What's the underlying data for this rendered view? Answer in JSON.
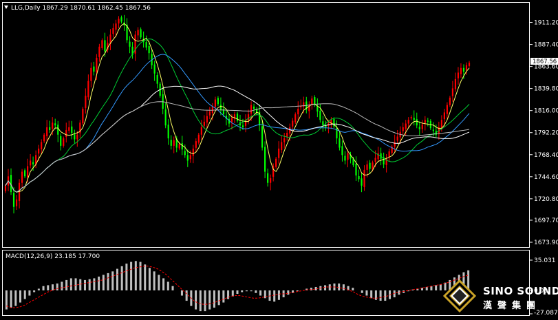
{
  "colors": {
    "background": "#000000",
    "bull_candle": "#00ff00",
    "bear_candle": "#ff0000",
    "grid_border": "#ffffff",
    "macd_hist": "#c0c0c0",
    "macd_signal": "#ff0000",
    "ma_yellow": "#ffff66",
    "ma_green": "#00cc33",
    "ma_blue": "#3399ff",
    "ma_white": "#ffffff",
    "ma_gray": "#bbbbbb"
  },
  "main_panel": {
    "triangle_icon": "down-triangle-icon",
    "header": "LLG,Daily  1867.29 1870.61 1862.45 1867.56",
    "current_price": "1867.56",
    "price_axis": [
      "1911.20",
      "1887.40",
      "1863.60",
      "1839.80",
      "1816.00",
      "1792.20",
      "1768.40",
      "1744.60",
      "1720.80",
      "1697.70",
      "1673.90"
    ]
  },
  "macd_panel": {
    "header": "MACD(12,26,9) 23.185 17.700",
    "axis": [
      "35.031",
      "0.00",
      "-27.087"
    ]
  },
  "watermark": {
    "logo_icon": "sino-sound-diamond-logo-icon",
    "brand_en": "SINO SOUND",
    "brand_cn": "漢聲集團"
  },
  "chart_data": [
    {
      "type": "candlestick",
      "title": "LLG,Daily",
      "symbol": "LLG",
      "timeframe": "Daily",
      "last_bar": {
        "open": 1867.29,
        "high": 1870.61,
        "low": 1862.45,
        "close": 1867.56
      },
      "ylim": [
        1673.9,
        1922.0
      ],
      "y_ticks": [
        1911.2,
        1887.4,
        1863.6,
        1839.8,
        1816.0,
        1792.2,
        1768.4,
        1744.6,
        1720.8,
        1697.7,
        1673.9
      ],
      "closes": [
        1735,
        1745,
        1728,
        1712,
        1720,
        1738,
        1750,
        1745,
        1756,
        1762,
        1758,
        1768,
        1775,
        1782,
        1790,
        1798,
        1795,
        1803,
        1800,
        1790,
        1778,
        1786,
        1795,
        1798,
        1792,
        1785,
        1790,
        1803,
        1818,
        1832,
        1848,
        1862,
        1858,
        1873,
        1885,
        1892,
        1880,
        1889,
        1898,
        1905,
        1910,
        1915,
        1912,
        1908,
        1892,
        1885,
        1876,
        1898,
        1903,
        1895,
        1890,
        1884,
        1878,
        1865,
        1856,
        1845,
        1832,
        1818,
        1800,
        1786,
        1778,
        1784,
        1776,
        1780,
        1774,
        1768,
        1762,
        1768,
        1775,
        1783,
        1790,
        1798,
        1804,
        1810,
        1815,
        1820,
        1828,
        1823,
        1817,
        1812,
        1807,
        1802,
        1808,
        1812,
        1805,
        1800,
        1798,
        1806,
        1812,
        1822,
        1818,
        1813,
        1800,
        1776,
        1750,
        1738,
        1743,
        1756,
        1764,
        1775,
        1782,
        1786,
        1792,
        1798,
        1805,
        1812,
        1818,
        1821,
        1825,
        1817,
        1822,
        1829,
        1822,
        1815,
        1806,
        1800,
        1798,
        1802,
        1806,
        1799,
        1786,
        1776,
        1768,
        1762,
        1770,
        1764,
        1757,
        1746,
        1742,
        1735,
        1752,
        1758,
        1753,
        1760,
        1765,
        1770,
        1764,
        1758,
        1765,
        1772,
        1777,
        1782,
        1788,
        1793,
        1798,
        1802,
        1806,
        1809,
        1806,
        1800,
        1796,
        1801,
        1806,
        1804,
        1797,
        1794,
        1790,
        1798,
        1806,
        1814,
        1822,
        1830,
        1840,
        1850,
        1857,
        1862,
        1858,
        1865,
        1867.56
      ]
    },
    {
      "type": "bar",
      "title": "MACD(12,26,9)",
      "macd": 23.185,
      "signal": 17.7,
      "ylim": [
        -27.087,
        35.031
      ],
      "y_ticks": [
        35.031,
        0.0,
        -27.087
      ],
      "signal_line": [
        -18,
        -20,
        -20,
        -19,
        -17,
        -14,
        -11,
        -8,
        -5,
        -2,
        0,
        2,
        3,
        4,
        5,
        6,
        7,
        8,
        9,
        10,
        11,
        12,
        14,
        16,
        18,
        20,
        22,
        24,
        26,
        27,
        28,
        28,
        27,
        25,
        22,
        18,
        13,
        8,
        3,
        -2,
        -7,
        -12,
        -15,
        -16,
        -16,
        -15,
        -13,
        -11,
        -9,
        -7,
        -6,
        -6,
        -7,
        -8,
        -9,
        -9,
        -8,
        -7,
        -6,
        -5,
        -4,
        -4,
        -3,
        -2,
        -1,
        0,
        1,
        1,
        2,
        3,
        4,
        4,
        4,
        3,
        2,
        0,
        -2,
        -5,
        -7,
        -8,
        -9,
        -9,
        -8,
        -7,
        -5,
        -3,
        -2,
        -1,
        0,
        1,
        2,
        3,
        4,
        5,
        6,
        7,
        8,
        10,
        12,
        14,
        16,
        17.7
      ],
      "histogram": [
        -22,
        -20,
        -18,
        -14,
        -10,
        -6,
        -2,
        2,
        5,
        6,
        7,
        8,
        10,
        12,
        14,
        14,
        13,
        12,
        13,
        14,
        16,
        18,
        20,
        22,
        25,
        28,
        31,
        33,
        34,
        33,
        30,
        26,
        22,
        18,
        14,
        10,
        5,
        0,
        -6,
        -12,
        -18,
        -22,
        -24,
        -24,
        -22,
        -20,
        -17,
        -14,
        -10,
        -7,
        -4,
        -2,
        -1,
        -1,
        -3,
        -6,
        -9,
        -12,
        -13,
        -11,
        -8,
        -5,
        -3,
        -1,
        0,
        2,
        3,
        4,
        5,
        6,
        7,
        8,
        8,
        7,
        5,
        3,
        0,
        -3,
        -6,
        -9,
        -11,
        -12,
        -12,
        -10,
        -8,
        -5,
        -3,
        -1,
        1,
        2,
        3,
        4,
        5,
        6,
        7,
        9,
        12,
        15,
        18,
        21,
        23.185
      ]
    }
  ]
}
